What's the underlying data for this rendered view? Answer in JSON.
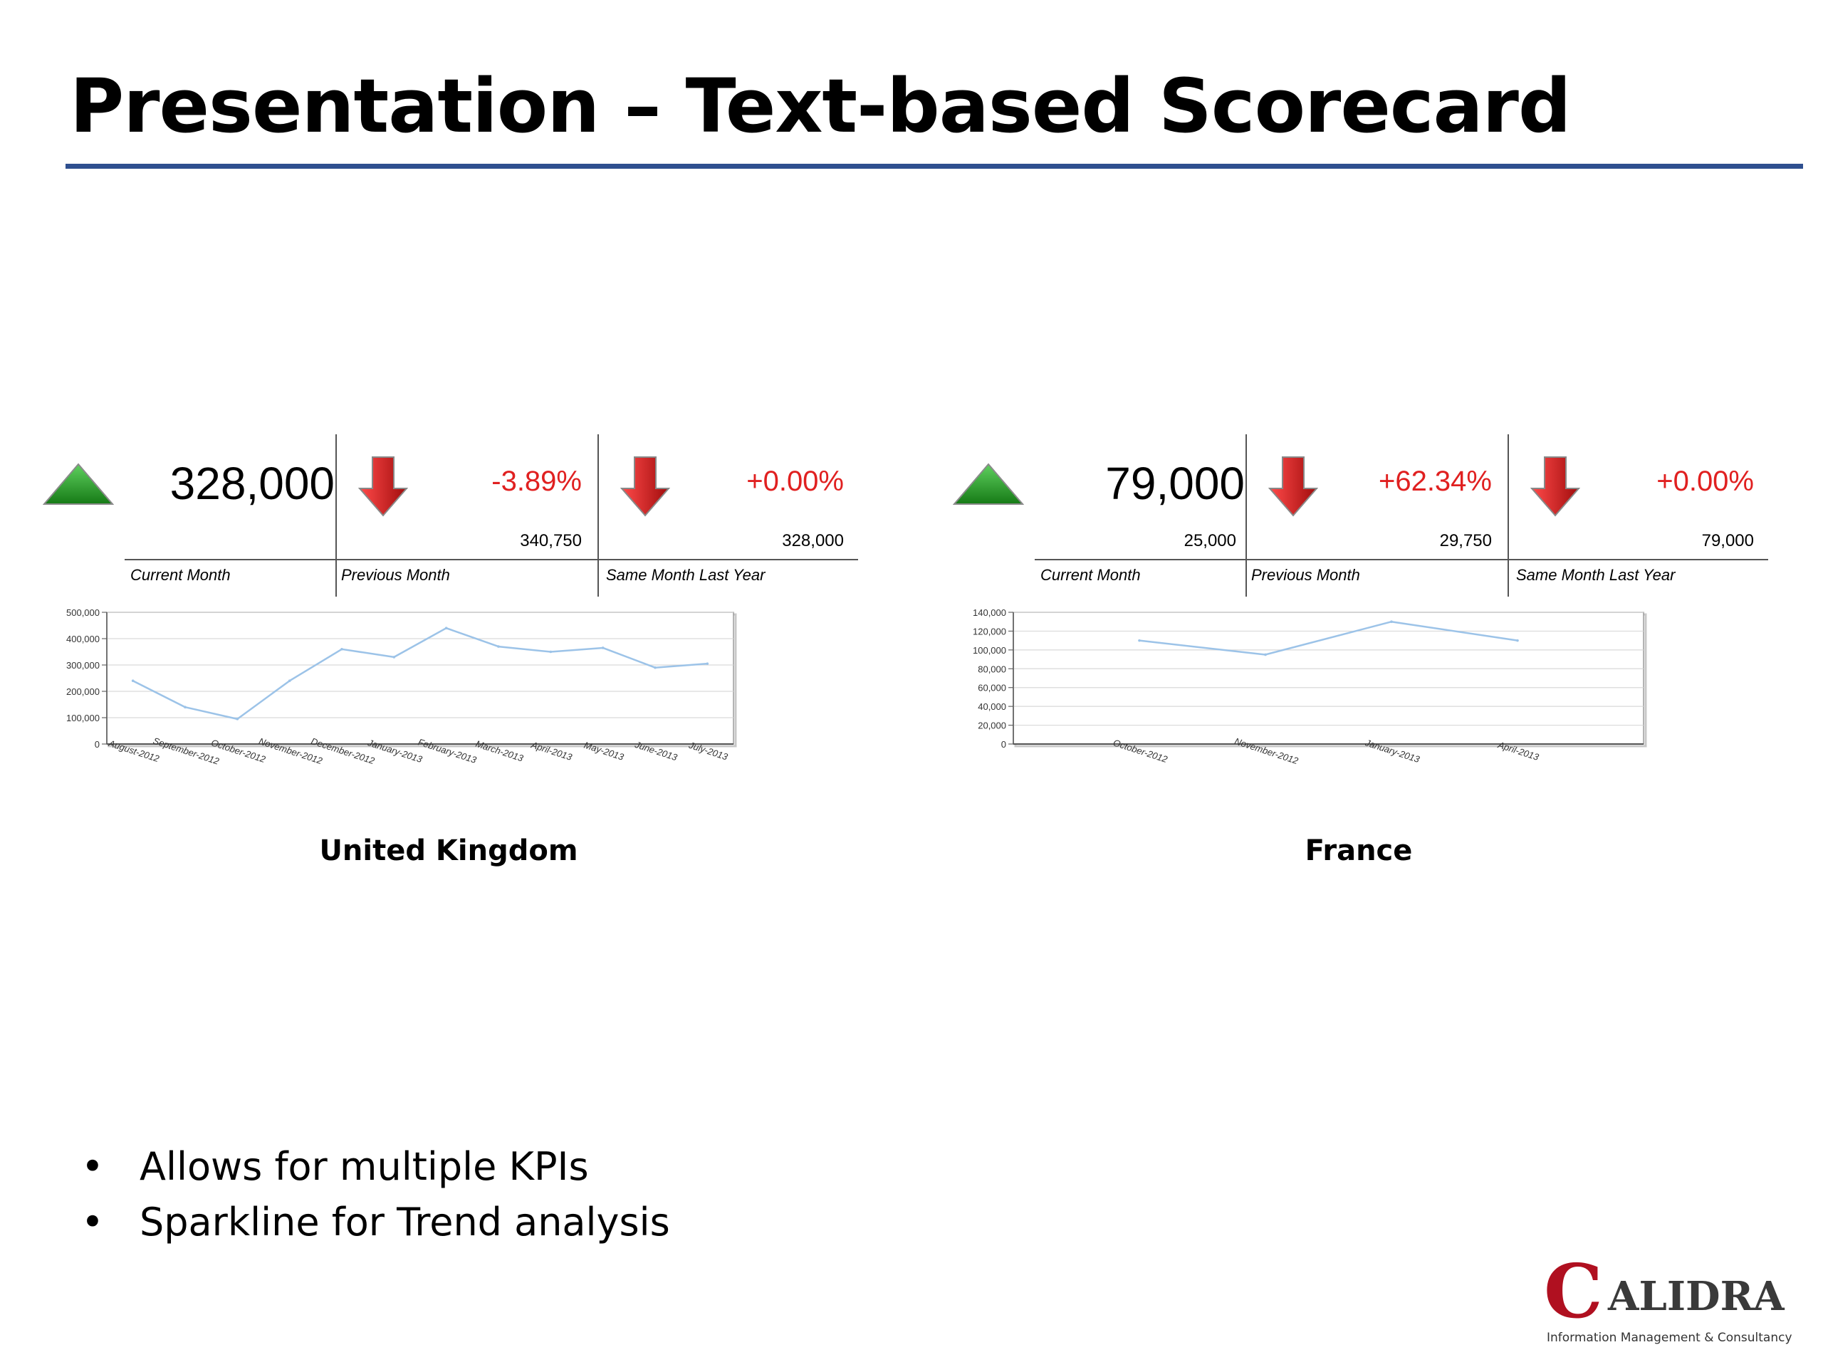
{
  "title": "Presentation – Text-based Scorecard",
  "colors": {
    "rule": "#2e4f8f",
    "up_arrow": "#1e9a1e",
    "down_arrow": "#d01818",
    "negative_text": "#e02020",
    "sparkline": "#9cc3e8"
  },
  "scorecards": [
    {
      "name": "United Kingdom",
      "current_value": "328,000",
      "current_trend_icon": "up-arrow-icon",
      "current_sub": "",
      "current_label": "Current Month",
      "previous": {
        "pct": "-3.89%",
        "value": "340,750",
        "label": "Previous Month",
        "icon": "down-arrow-icon"
      },
      "last_year": {
        "pct": "+0.00%",
        "value": "328,000",
        "label": "Same Month Last Year",
        "icon": "down-arrow-icon"
      }
    },
    {
      "name": "France",
      "current_value": "79,000",
      "current_trend_icon": "up-arrow-icon",
      "current_sub": "25,000",
      "current_label": "Current Month",
      "previous": {
        "pct": "+62.34%",
        "value": "29,750",
        "label": "Previous Month",
        "icon": "down-arrow-icon"
      },
      "last_year": {
        "pct": "+0.00%",
        "value": "79,000",
        "label": "Same Month Last Year",
        "icon": "down-arrow-icon"
      }
    }
  ],
  "chart_data": [
    {
      "type": "line",
      "title": "United Kingdom",
      "xlabel": "",
      "ylabel": "",
      "categories": [
        "August-2012",
        "September-2012",
        "October-2012",
        "November-2012",
        "December-2012",
        "January-2013",
        "February-2013",
        "March-2013",
        "April-2013",
        "May-2013",
        "June-2013",
        "July-2013"
      ],
      "series": [
        {
          "values": [
            240000,
            140000,
            95000,
            240000,
            360000,
            330000,
            440000,
            370000,
            350000,
            365000,
            290000,
            305000
          ]
        }
      ],
      "ylim": [
        0,
        500000
      ],
      "yticks": [
        0,
        100000,
        200000,
        300000,
        400000,
        500000
      ],
      "ytick_labels": [
        "0",
        "100,000",
        "200,000",
        "300,000",
        "400,000",
        "500,000"
      ],
      "grid": true,
      "legend": "none"
    },
    {
      "type": "line",
      "title": "France",
      "xlabel": "",
      "ylabel": "",
      "categories": [
        "October-2012",
        "November-2012",
        "January-2013",
        "April-2013"
      ],
      "series": [
        {
          "values": [
            110000,
            95000,
            130000,
            110000
          ]
        }
      ],
      "ylim": [
        0,
        140000
      ],
      "yticks": [
        0,
        20000,
        40000,
        60000,
        80000,
        100000,
        120000,
        140000
      ],
      "ytick_labels": [
        "0",
        "20,000",
        "40,000",
        "60,000",
        "80,000",
        "100,000",
        "120,000",
        "140,000"
      ],
      "grid": true,
      "legend": "none"
    }
  ],
  "bullets": [
    {
      "marker": "•",
      "text": "Allows for multiple KPIs"
    },
    {
      "marker": "•",
      "text": "Sparkline for Trend analysis"
    }
  ],
  "logo": {
    "text": "ALIDRA",
    "mark": "C",
    "tagline": "Information Management & Consultancy"
  }
}
